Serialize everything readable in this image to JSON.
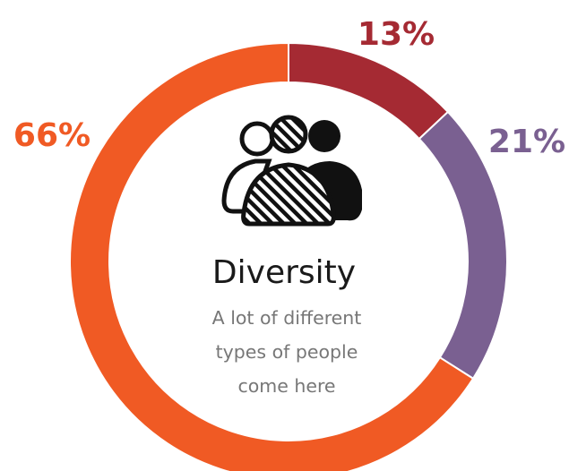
{
  "chart_data": {
    "type": "pie",
    "categories": [
      "13%",
      "21%",
      "66%"
    ],
    "values": [
      13,
      21,
      66
    ],
    "labels": [
      "13%",
      "21%",
      "66%"
    ],
    "colors": [
      "#a52a33",
      "#7a6091",
      "#f05a24"
    ],
    "title": "Diversity",
    "subtitle_lines": [
      "A lot of different",
      "types of people",
      "come here"
    ],
    "center_icon": "people-diversity-icon"
  },
  "colors": {
    "background": "#ffffff",
    "title_text": "#1a1a1a",
    "subtitle_text": "#777777"
  }
}
